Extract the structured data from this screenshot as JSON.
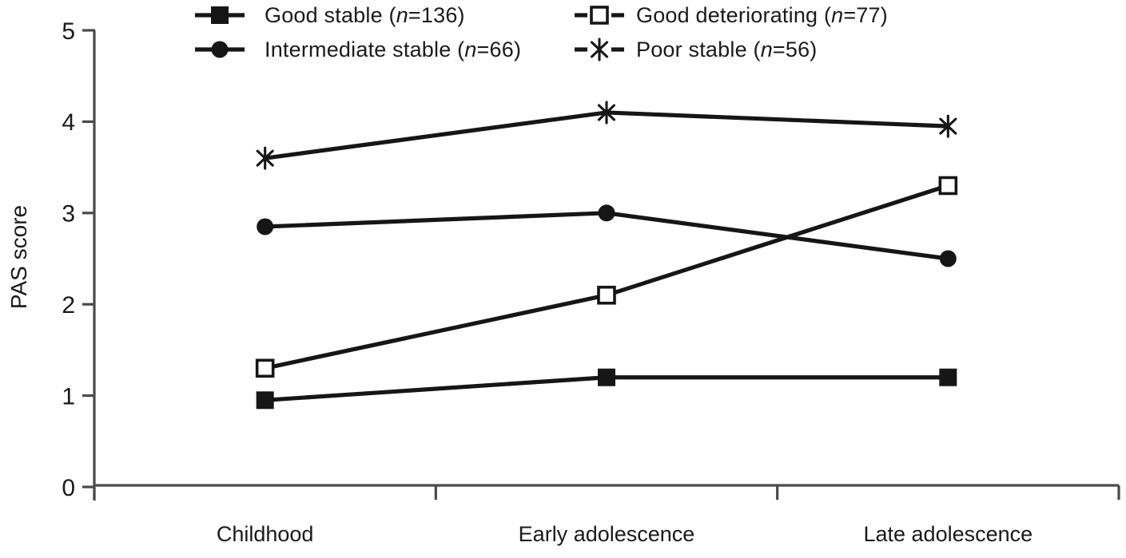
{
  "figure": {
    "background": "#ffffff"
  },
  "y_axis_title": "PAS score",
  "legend": {
    "items": [
      {
        "prefix": "Good stable (",
        "var": "n",
        "suffix": "=136)",
        "marker": "filled-square",
        "sample_style": "solid"
      },
      {
        "prefix": "Good deteriorating (",
        "var": "n",
        "suffix": "=77)",
        "marker": "open-square",
        "sample_style": "dashed"
      },
      {
        "prefix": "Intermediate stable (",
        "var": "n",
        "suffix": "=66)",
        "marker": "filled-circle",
        "sample_style": "solid"
      },
      {
        "prefix": "Poor stable (",
        "var": "n",
        "suffix": "=56)",
        "marker": "asterisk",
        "sample_style": "dashed"
      }
    ]
  },
  "chart_data": {
    "type": "line",
    "title": "",
    "xlabel": "",
    "ylabel": "PAS score",
    "ylim": [
      0,
      5
    ],
    "y_ticks": [
      "0",
      "1",
      "2",
      "3",
      "4",
      "5"
    ],
    "grid": false,
    "legend_position": "top",
    "categories": [
      "Childhood",
      "Early adolescence",
      "Late adolescence"
    ],
    "series": [
      {
        "name": "Good stable",
        "n": 136,
        "legend_label": "Good stable (n=136)",
        "marker": "filled-square",
        "values": [
          0.95,
          1.2,
          1.2
        ]
      },
      {
        "name": "Good deteriorating",
        "n": 77,
        "legend_label": "Good deteriorating (n=77)",
        "marker": "open-square",
        "values": [
          1.3,
          2.1,
          3.3
        ]
      },
      {
        "name": "Intermediate stable",
        "n": 66,
        "legend_label": "Intermediate stable (n=66)",
        "marker": "filled-circle",
        "values": [
          2.85,
          3.0,
          2.5
        ]
      },
      {
        "name": "Poor stable",
        "n": 56,
        "legend_label": "Poor stable (n=56)",
        "marker": "asterisk",
        "values": [
          3.6,
          4.1,
          3.95
        ]
      }
    ],
    "colors": {
      "series": "#161616",
      "axis": "#4a4a4a",
      "text": "#1a1a1a",
      "background": "#ffffff"
    }
  }
}
